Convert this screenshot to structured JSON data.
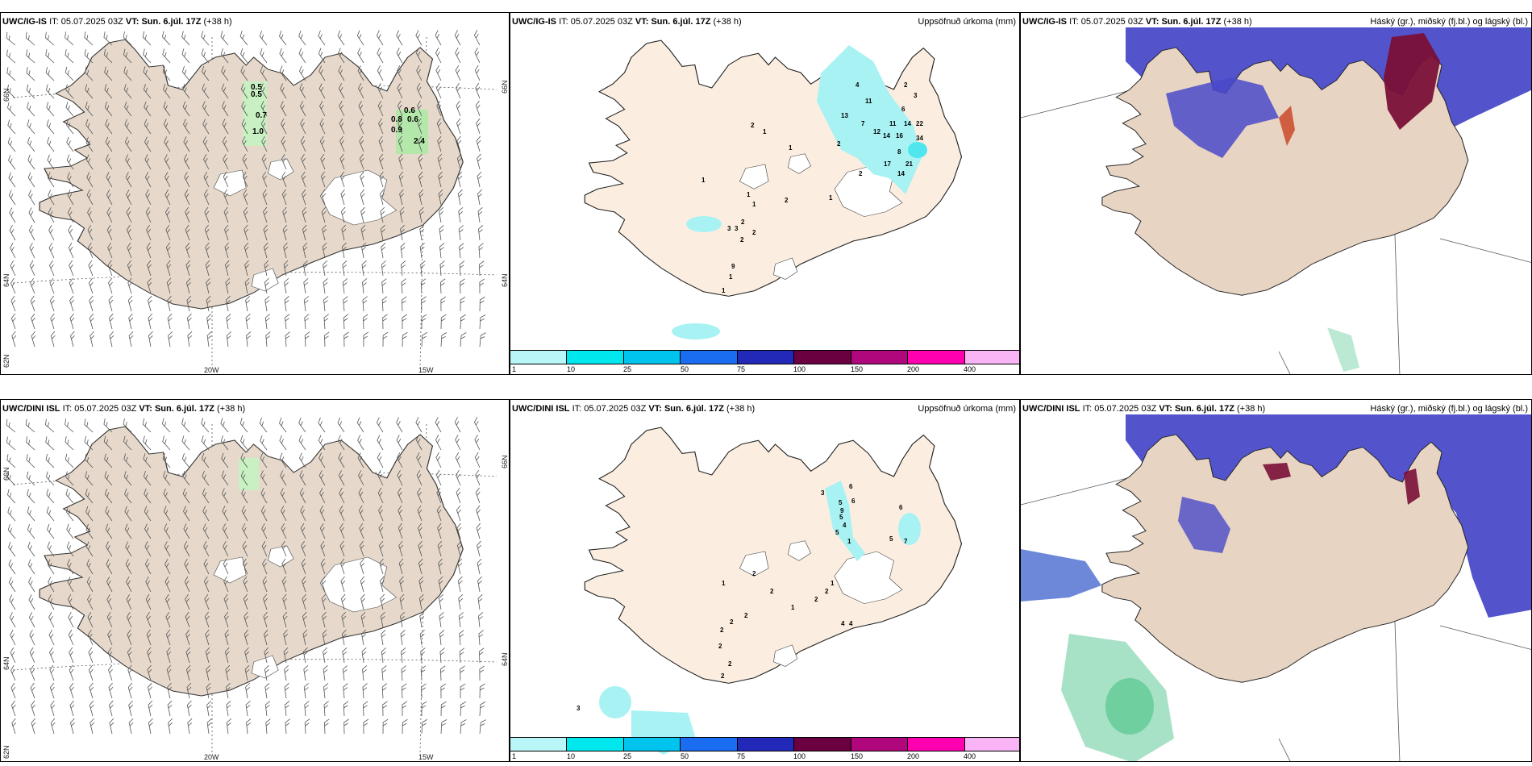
{
  "colors": {
    "land_wind": "#e6d9cb",
    "land_precip": "#fbeee0",
    "land_cloud": "#e7d4c3",
    "sea": "#ffffff",
    "precip_light": "#a8f2f4",
    "precip_mid": "#4fe6ee",
    "wind_green": "#c9f0c2",
    "cloud_high": "#4a4ac9",
    "cloud_mid": "#7a1038",
    "cloud_low": "#3fbf80",
    "cbar": [
      "#b9f6f8",
      "#00e8ee",
      "#00c4ee",
      "#1a6cf0",
      "#2228b8",
      "#6a0040",
      "#b0087c",
      "#ff00b0",
      "#f8b4f4"
    ]
  },
  "colorbar_ticks": [
    "1",
    "10",
    "25",
    "50",
    "75",
    "100",
    "150",
    "200",
    "400"
  ],
  "rows": [
    {
      "wind": {
        "model": "UWC/IG-IS",
        "it_label": "IT:",
        "it_value": "05.07.2025 03Z",
        "vt_label": "VT:",
        "vt_value": "Sun. 6.júl. 17Z",
        "lead": "(+38 h)",
        "lon_labels": [
          "20W",
          "15W"
        ],
        "lat_labels_left": [
          "66N",
          "64N",
          "62N"
        ],
        "lat_labels_right": [
          "66N",
          "64N"
        ],
        "precip_labels": [
          "0.5",
          "0.5",
          "0.7",
          "1.0",
          "0.6",
          "0.8",
          "0.6",
          "0.9",
          "2.4"
        ]
      },
      "precip": {
        "model": "UWC/IG-IS",
        "it_label": "IT:",
        "it_value": "05.07.2025 03Z",
        "vt_label": "VT:",
        "vt_value": "Sun. 6.júl. 17Z",
        "lead": "(+38 h)",
        "title_right": "Uppsöfnuð úrkoma (mm)",
        "amounts": [
          "4",
          "2",
          "3",
          "11",
          "6",
          "13",
          "7",
          "11",
          "14",
          "22",
          "12",
          "14",
          "16",
          "34",
          "8",
          "17",
          "21",
          "14",
          "2",
          "2",
          "2",
          "1",
          "1",
          "1",
          "1",
          "1",
          "1",
          "2",
          "2",
          "2",
          "3",
          "3",
          "2",
          "9",
          "1",
          "1"
        ]
      },
      "cloud": {
        "model": "UWC/IG-IS",
        "it_label": "IT:",
        "it_value": "05.07.2025 03Z",
        "vt_label": "VT:",
        "vt_value": "Sun. 6.júl. 17Z",
        "lead": "(+38 h)",
        "title_right": "Háský (gr.), miðský (fj.bl.) og lágský (bl.)"
      }
    },
    {
      "wind": {
        "model": "UWC/DINI ISL",
        "it_label": "IT:",
        "it_value": "05.07.2025 03Z",
        "vt_label": "VT:",
        "vt_value": "Sun. 6.júl. 17Z",
        "lead": "(+38 h)",
        "lon_labels": [
          "20W",
          "15W"
        ],
        "lat_labels_left": [
          "66N",
          "64N",
          "62N"
        ],
        "lat_labels_right": [
          "66N",
          "64N"
        ]
      },
      "precip": {
        "model": "UWC/DINI ISL",
        "it_label": "IT:",
        "it_value": "05.07.2025 03Z",
        "vt_label": "VT:",
        "vt_value": "Sun. 6.júl. 17Z",
        "lead": "(+38 h)",
        "title_right": "Uppsöfnuð úrkoma (mm)",
        "amounts": [
          "3",
          "6",
          "5",
          "6",
          "9",
          "6",
          "5",
          "4",
          "5",
          "1",
          "5",
          "7",
          "1",
          "2",
          "2",
          "2",
          "2",
          "1",
          "2",
          "2",
          "2",
          "2",
          "2",
          "2",
          "4",
          "4",
          "1",
          "3"
        ]
      },
      "cloud": {
        "model": "UWC/DINI ISL",
        "it_label": "IT:",
        "it_value": "05.07.2025 03Z",
        "vt_label": "VT:",
        "vt_value": "Sun. 6.júl. 17Z",
        "lead": "(+38 h)",
        "title_right": "Háský (gr.), miðský (fj.bl.) og lágský (bl.)"
      }
    }
  ]
}
